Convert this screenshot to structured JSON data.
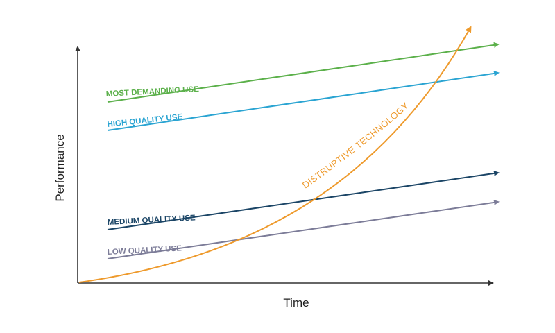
{
  "axes": {
    "x_label": "Time",
    "y_label": "Performance"
  },
  "trends": [
    {
      "key": "most_demanding",
      "label": "MOST DEMANDING USE",
      "color": "#5bb04a"
    },
    {
      "key": "high_quality",
      "label": "HIGH QUALITY USE",
      "color": "#2aa4d2"
    },
    {
      "key": "medium_quality",
      "label": "MEDIUM QUALITY USE",
      "color": "#1b4566"
    },
    {
      "key": "low_quality",
      "label": "LOW QUALITY USE",
      "color": "#7c7c98"
    }
  ],
  "curve": {
    "label": "DISTRUPTIVE TECHNOLOGY",
    "color": "#ee9a2c"
  },
  "colors": {
    "axis": "#333333"
  }
}
